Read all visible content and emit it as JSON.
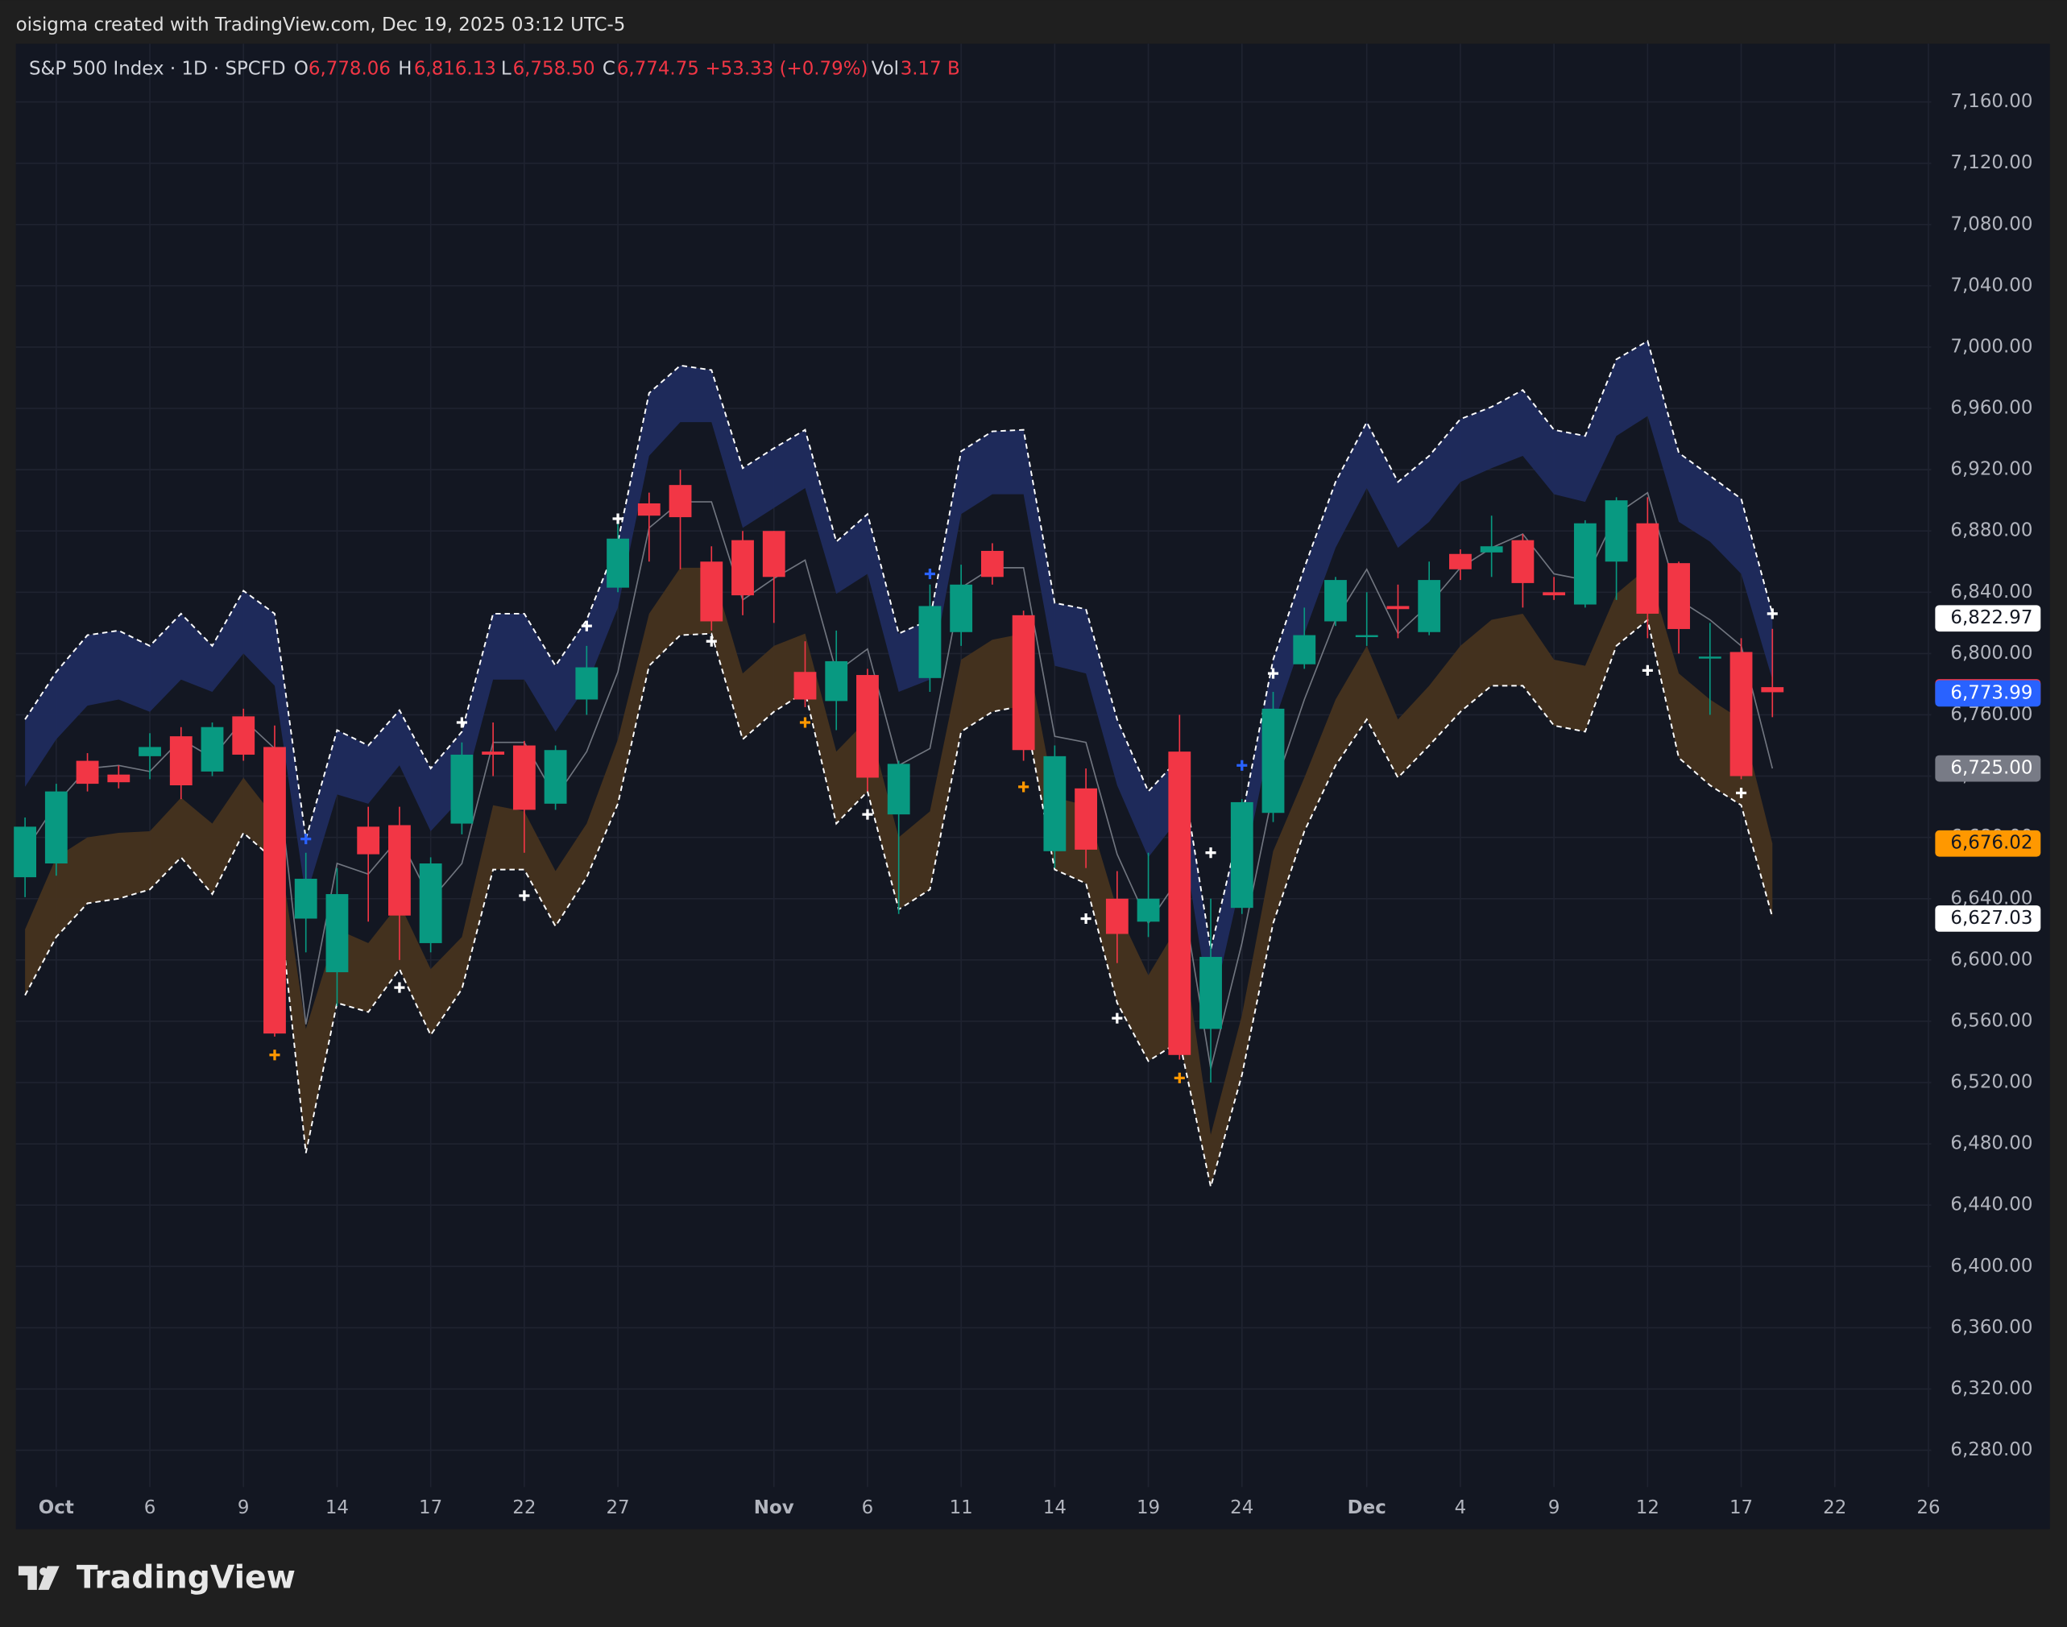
{
  "header": "oisigma created with TradingView.com, Dec 19, 2025 03:12 UTC-5",
  "brand": "TradingView",
  "chart_data": {
    "type": "candlestick",
    "title": "S&P 500 Index · 1D · SPCFD",
    "legend": {
      "o": "O",
      "open": "6,778.06",
      "h": "H",
      "high": "6,816.13",
      "l": "L",
      "low": "6,758.50",
      "c": "C",
      "close": "6,774.75",
      "change": "+53.33 (+0.79%)",
      "vol": "Vol",
      "volume": "3.17 B"
    },
    "categories": [
      null,
      "Oct",
      null,
      null,
      "6",
      null,
      null,
      "9",
      null,
      null,
      "14",
      null,
      null,
      "17",
      null,
      null,
      "22",
      null,
      null,
      "27",
      null,
      null,
      null,
      null,
      "Nov",
      null,
      null,
      "6",
      null,
      null,
      "11",
      null,
      null,
      "14",
      null,
      null,
      "19",
      null,
      null,
      "24",
      null,
      null,
      null,
      "Dec",
      null,
      null,
      "4",
      null,
      null,
      "9",
      null,
      null,
      "12",
      null,
      null,
      "17",
      null,
      null,
      "22",
      null,
      null,
      "26"
    ],
    "up_color": "#089981",
    "down_color": "#f23645",
    "open": [
      6654,
      6663,
      6730,
      6721,
      6733,
      6746,
      6723,
      6759,
      6739,
      6627,
      6592,
      6687,
      6688,
      6611,
      6689,
      6736,
      6740,
      6702,
      6770,
      6843,
      6898,
      6910,
      6860,
      6874,
      6880,
      6788,
      6769,
      6786,
      6695,
      6784,
      6814,
      6867,
      6825,
      6671,
      6712,
      6640,
      6625,
      6736,
      6555,
      6634,
      6696,
      6793,
      6821,
      6811,
      6831,
      6814,
      6865,
      6866,
      6874,
      6840,
      6832,
      6860,
      6885,
      6859,
      6797,
      6801,
      6778.06,
      null,
      null,
      null,
      null,
      null
    ],
    "high": [
      6693,
      6715,
      6735,
      6727,
      6748,
      6752,
      6755,
      6764,
      6753,
      6670,
      6660,
      6700,
      6700,
      6667,
      6742,
      6755,
      6743,
      6740,
      6805,
      6885,
      6905,
      6920,
      6870,
      6880,
      6880,
      6808,
      6815,
      6790,
      6730,
      6845,
      6858,
      6872,
      6828,
      6740,
      6725,
      6658,
      6670,
      6760,
      6640,
      6705,
      6775,
      6830,
      6850,
      6840,
      6845,
      6860,
      6868,
      6890,
      6878,
      6850,
      6887,
      6902,
      6902,
      6860,
      6820,
      6810,
      6816.13,
      null,
      null,
      null,
      null,
      null
    ],
    "low": [
      6641,
      6655,
      6710,
      6712,
      6718,
      6705,
      6720,
      6730,
      6550,
      6605,
      6570,
      6625,
      6600,
      6605,
      6682,
      6720,
      6670,
      6698,
      6760,
      6840,
      6860,
      6855,
      6815,
      6825,
      6820,
      6765,
      6750,
      6710,
      6630,
      6775,
      6805,
      6845,
      6730,
      6660,
      6660,
      6598,
      6615,
      6535,
      6520,
      6630,
      6690,
      6790,
      6818,
      6805,
      6810,
      6812,
      6848,
      6850,
      6830,
      6835,
      6830,
      6835,
      6810,
      6800,
      6760,
      6718,
      6758.5,
      null,
      null,
      null,
      null,
      null
    ],
    "close": [
      6687,
      6710,
      6715,
      6716,
      6739,
      6714,
      6752,
      6734,
      6552,
      6653,
      6643,
      6669,
      6629,
      6663,
      6734,
      6734,
      6698,
      6737,
      6791,
      6875,
      6890,
      6889,
      6821,
      6838,
      6850,
      6770,
      6795,
      6719,
      6728,
      6831,
      6845,
      6850,
      6737,
      6733,
      6672,
      6617,
      6640,
      6538,
      6602,
      6703,
      6764,
      6812,
      6848,
      6812,
      6829,
      6848,
      6855,
      6870,
      6846,
      6838,
      6885,
      6900,
      6826,
      6816,
      6798,
      6720,
      6774.75,
      null,
      null,
      null,
      null,
      null
    ],
    "lines": [
      {
        "style": "dashed",
        "color": "#ffffff",
        "values": [
          6757,
          6788,
          6812,
          6815,
          6805,
          6826,
          6805,
          6841,
          6826,
          6679,
          6750,
          6740,
          6763,
          6725,
          6749,
          6826,
          6826,
          6792,
          6822,
          6873,
          6970,
          6988,
          6985,
          6921,
          6934,
          6946,
          6873,
          6891,
          6813,
          6822,
          6932,
          6945,
          6946,
          6833,
          6829,
          6757,
          6710,
          6732,
          6607,
          6693,
          6796,
          6856,
          6912,
          6951,
          6912,
          6929,
          6953,
          6961,
          6972,
          6946,
          6942,
          6992,
          7004,
          6931,
          6916,
          6901,
          6826,
          null,
          null,
          null,
          null,
          null
        ]
      },
      {
        "style": "solid",
        "color": "#8a8e99",
        "values": [
          6671,
          6702,
          6725,
          6727,
          6723,
          6744,
          6732,
          6757,
          6738,
          6558,
          6663,
          6656,
          6680,
          6639,
          6663,
          6742,
          6742,
          6706,
          6736,
          6788,
          6882,
          6899,
          6899,
          6835,
          6849,
          6861,
          6788,
          6803,
          6727,
          6738,
          6843,
          6856,
          6856,
          6746,
          6742,
          6669,
          6624,
          6654,
          6529,
          6611,
          6710,
          6770,
          6822,
          6855,
          6813,
          6832,
          6856,
          6869,
          6878,
          6852,
          6848,
          6891,
          6905,
          6835,
          6822,
          6805,
          6725,
          null,
          null,
          null,
          null,
          null
        ]
      },
      {
        "style": "dashed",
        "color": "#ffffff",
        "values": [
          6577,
          6615,
          6637,
          6640,
          6646,
          6667,
          6643,
          6683,
          6665,
          6474,
          6572,
          6566,
          6594,
          6551,
          6581,
          6659,
          6659,
          6622,
          6654,
          6702,
          6792,
          6812,
          6813,
          6744,
          6762,
          6775,
          6689,
          6710,
          6633,
          6646,
          6749,
          6762,
          6766,
          6659,
          6650,
          6572,
          6534,
          6547,
          6452,
          6525,
          6624,
          6684,
          6727,
          6757,
          6719,
          6740,
          6762,
          6779,
          6779,
          6753,
          6749,
          6805,
          6822,
          6732,
          6714,
          6701,
          6628,
          null,
          null,
          null,
          null,
          null
        ]
      }
    ],
    "bands": [
      {
        "color": "#1f2b5e",
        "values": [
          6713,
          6744,
          6766,
          6770,
          6762,
          6783,
          6775,
          6800,
          6779,
          6641,
          6708,
          6702,
          6727,
          6684,
          6706,
          6783,
          6783,
          6749,
          6779,
          6830,
          6929,
          6951,
          6951,
          6882,
          6895,
          6908,
          6839,
          6852,
          6775,
          6783,
          6891,
          6904,
          6904,
          6792,
          6787,
          6714,
          6667,
          6693,
          6564,
          6654,
          6753,
          6813,
          6869,
          6908,
          6869,
          6886,
          6912,
          6921,
          6929,
          6904,
          6899,
          6942,
          6955,
          6886,
          6873,
          6852,
          6783,
          null,
          null,
          null,
          null,
          null
        ]
      },
      {
        "color": "#46331f",
        "values": [
          6620,
          6667,
          6680,
          6683,
          6684,
          6706,
          6689,
          6719,
          6693,
          6555,
          6620,
          6611,
          6637,
          6594,
          6615,
          6701,
          6697,
          6658,
          6689,
          6744,
          6826,
          6856,
          6856,
          6787,
          6805,
          6813,
          6736,
          6757,
          6680,
          6697,
          6796,
          6809,
          6813,
          6706,
          6701,
          6633,
          6590,
          6624,
          6486,
          6564,
          6671,
          6719,
          6770,
          6805,
          6757,
          6779,
          6805,
          6822,
          6826,
          6796,
          6792,
          6839,
          6856,
          6787,
          6770,
          6757,
          6676,
          null,
          null,
          null,
          null,
          null
        ]
      }
    ],
    "signals": [
      {
        "color": "#ffffff",
        "values": [
          null,
          null,
          null,
          null,
          null,
          null,
          null,
          null,
          null,
          null,
          null,
          null,
          6582,
          null,
          6755,
          null,
          6642,
          null,
          6818,
          6888,
          null,
          null,
          6808,
          null,
          null,
          null,
          null,
          6695,
          null,
          null,
          null,
          null,
          null,
          null,
          6627,
          6562,
          null,
          null,
          6670,
          null,
          6787,
          null,
          null,
          null,
          null,
          null,
          null,
          null,
          null,
          null,
          null,
          null,
          6789,
          null,
          null,
          6709,
          6826,
          null,
          null,
          null,
          null,
          null
        ]
      },
      {
        "color": "#ff9800",
        "values": [
          null,
          null,
          null,
          null,
          null,
          null,
          null,
          null,
          6538,
          null,
          null,
          null,
          null,
          null,
          null,
          null,
          null,
          null,
          null,
          null,
          null,
          null,
          null,
          null,
          null,
          6755,
          null,
          null,
          null,
          null,
          null,
          null,
          6713,
          null,
          null,
          null,
          null,
          6523,
          null,
          null,
          null,
          null,
          null,
          null,
          null,
          null,
          null,
          null,
          null,
          null,
          null,
          null,
          null,
          null,
          null,
          null,
          null,
          null,
          null,
          null,
          null,
          null
        ]
      },
      {
        "color": "#2962ff",
        "values": [
          null,
          null,
          null,
          null,
          null,
          null,
          null,
          null,
          null,
          6679,
          null,
          null,
          null,
          null,
          null,
          null,
          null,
          null,
          null,
          null,
          null,
          null,
          null,
          null,
          null,
          null,
          null,
          null,
          null,
          6852,
          null,
          null,
          null,
          null,
          null,
          null,
          null,
          null,
          null,
          6727,
          null,
          null,
          null,
          null,
          null,
          null,
          null,
          null,
          null,
          null,
          null,
          null,
          null,
          null,
          null,
          null,
          null,
          null,
          null,
          null,
          null,
          null
        ]
      }
    ],
    "price_labels": [
      {
        "value": 6822.97,
        "label": "6,822.97",
        "color": "#ffffff",
        "text_color": "#131722"
      },
      {
        "value": 6774.75,
        "label": "6,774.75",
        "color": "#f23645",
        "text_color": "#ffffff"
      },
      {
        "value": 6773.99,
        "label": "6,773.99",
        "color": "#2962ff",
        "text_color": "#ffffff"
      },
      {
        "value": 6725.0,
        "label": "6,725.00",
        "color": "#787b86",
        "text_color": "#ffffff"
      },
      {
        "value": 6676.02,
        "label": "6,676.02",
        "color": "#ff9800",
        "text_color": "#131722"
      },
      {
        "value": 6627.03,
        "label": "6,627.03",
        "color": "#ffffff",
        "text_color": "#131722"
      }
    ],
    "ylim": [
      6256,
      7198
    ],
    "yticks": [
      {
        "value": 6280,
        "label": "6,280.00"
      },
      {
        "value": 6320,
        "label": "6,320.00"
      },
      {
        "value": 6360,
        "label": "6,360.00"
      },
      {
        "value": 6400,
        "label": "6,400.00"
      },
      {
        "value": 6440,
        "label": "6,440.00"
      },
      {
        "value": 6480,
        "label": "6,480.00"
      },
      {
        "value": 6520,
        "label": "6,520.00"
      },
      {
        "value": 6560,
        "label": "6,560.00"
      },
      {
        "value": 6600,
        "label": "6,600.00"
      },
      {
        "value": 6640,
        "label": "6,640.00"
      },
      {
        "value": 6680,
        "label": "6,680.00"
      },
      {
        "value": 6720,
        "label": "6,720.00"
      },
      {
        "value": 6760,
        "label": "6,760.00"
      },
      {
        "value": 6800,
        "label": "6,800.00"
      },
      {
        "value": 6840,
        "label": "6,840.00"
      },
      {
        "value": 6880,
        "label": "6,880.00"
      },
      {
        "value": 6920,
        "label": "6,920.00"
      },
      {
        "value": 6960,
        "label": "6,960.00"
      },
      {
        "value": 7000,
        "label": "7,000.00"
      },
      {
        "value": 7040,
        "label": "7,040.00"
      },
      {
        "value": 7080,
        "label": "7,080.00"
      },
      {
        "value": 7120,
        "label": "7,120.00"
      },
      {
        "value": 7160,
        "label": "7,160.00"
      }
    ],
    "grid": true
  }
}
